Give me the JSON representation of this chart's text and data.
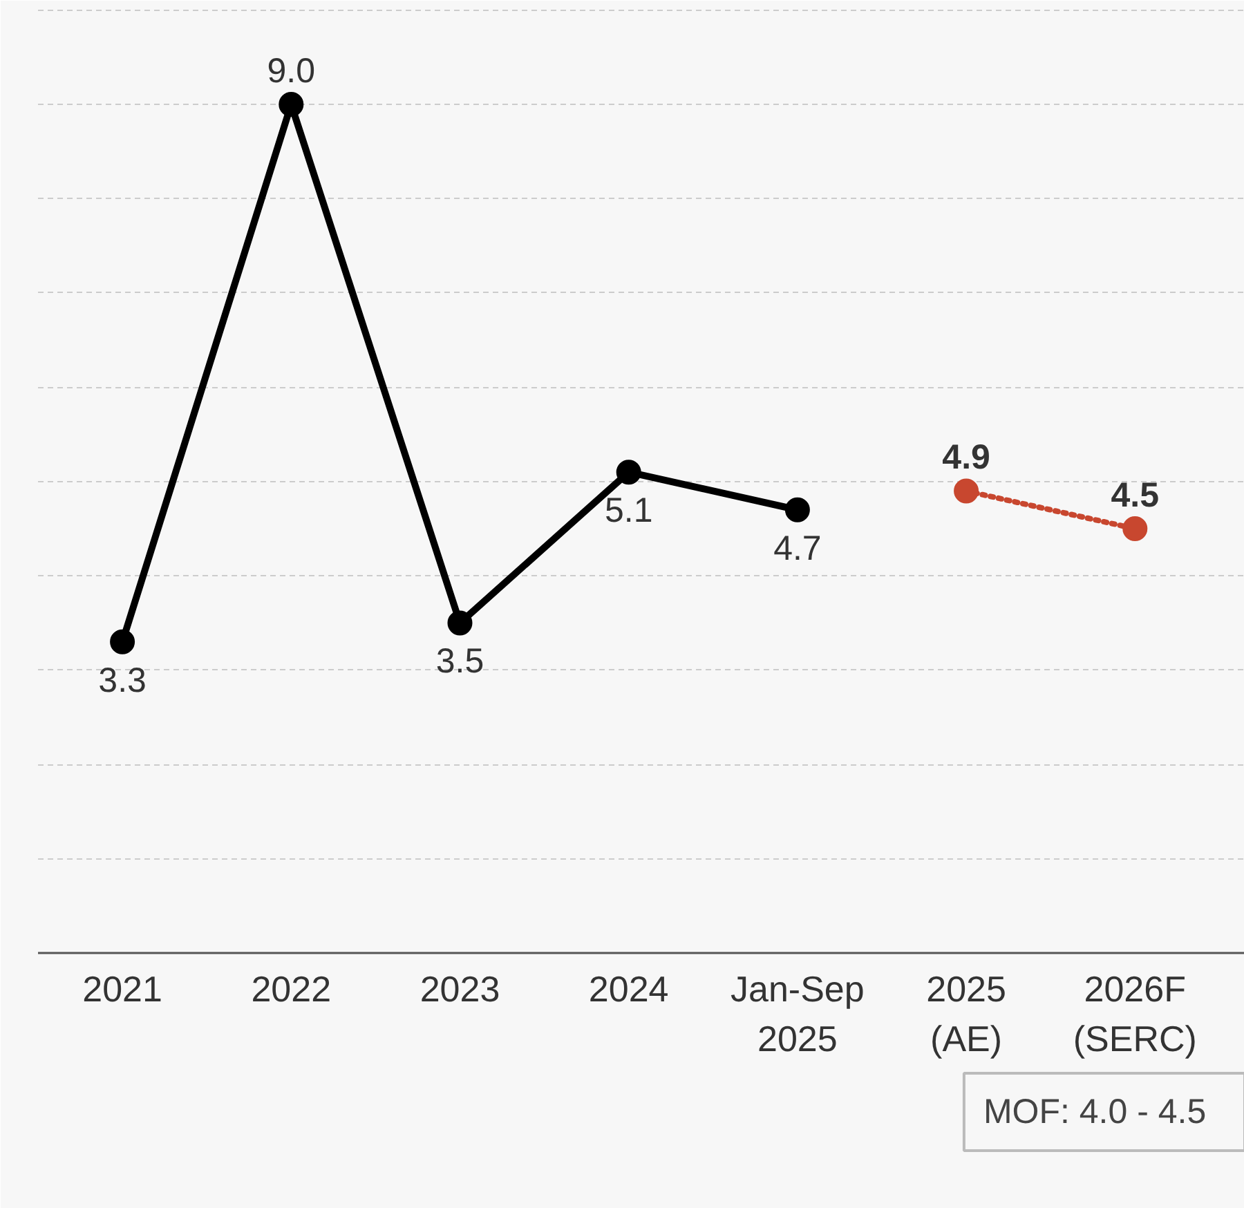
{
  "chart_data": {
    "type": "line",
    "categories": [
      "2021",
      "2022",
      "2023",
      "2024",
      "Jan-Sep\n2025",
      "2025\n(AE)",
      "2026F\n(SERC)"
    ],
    "series": [
      {
        "color": "#000000",
        "values": [
          3.3,
          9.0,
          3.5,
          5.1,
          4.7,
          null,
          null
        ],
        "value_labels": [
          "3.3",
          "9.0",
          "3.5",
          "5.1",
          "4.7",
          null,
          null
        ],
        "line_style": "solid"
      },
      {
        "color": "#c8472f",
        "values": [
          null,
          null,
          null,
          null,
          null,
          4.9,
          4.5
        ],
        "value_labels": [
          null,
          null,
          null,
          null,
          null,
          "4.9",
          "4.5"
        ],
        "line_style": "dotted"
      }
    ],
    "ylim": [
      0,
      10.1
    ],
    "yticks": [
      {
        "value": 0,
        "label": null
      },
      {
        "value": 1,
        "label": null
      },
      {
        "value": 2,
        "label": null
      },
      {
        "value": 3,
        "label": null
      },
      {
        "value": 4,
        "label": null
      },
      {
        "value": 5,
        "label": null
      },
      {
        "value": 6,
        "label": null
      },
      {
        "value": 7,
        "label": null
      },
      {
        "value": 8,
        "label": null
      },
      {
        "value": 9,
        "label": null
      },
      {
        "value": 10,
        "label": null
      }
    ],
    "tick_labels": "x",
    "grid": "y",
    "marker": "circle",
    "annotations": [
      "MOF:   4.0 - 4.5"
    ]
  }
}
